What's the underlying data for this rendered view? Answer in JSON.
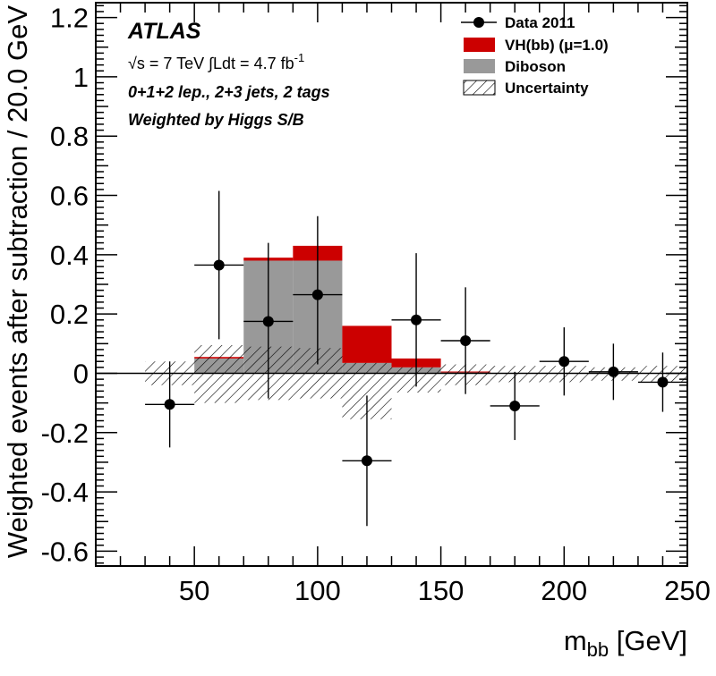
{
  "chart_data": {
    "type": "bar",
    "title": "",
    "experiment_label": "ATLAS",
    "energy_label": "√s = 7 TeV  ∫Ldt = 4.7 fb",
    "lumi_superscript": "-1",
    "selection_label": "0+1+2 lep., 2+3 jets, 2 tags",
    "weighting_label": "Weighted by Higgs S/B",
    "xlabel": "m",
    "xlabel_subscript": "bb",
    "xlabel_unit": " [GeV]",
    "ylabel": "Weighted events after subtraction / 20.0 GeV",
    "xlim": [
      10,
      250
    ],
    "ylim": [
      -0.65,
      1.25
    ],
    "x_ticks": [
      50,
      100,
      150,
      200,
      250
    ],
    "y_ticks": [
      -0.6,
      -0.4,
      -0.2,
      0,
      0.2,
      0.4,
      0.6,
      0.8,
      1,
      1.2
    ],
    "y_tick_labels": [
      "-0.6",
      "-0.4",
      "-0.2",
      "0",
      "0.2",
      "0.4",
      "0.6",
      "0.8",
      "1",
      "1.2"
    ],
    "bin_edges": [
      30,
      50,
      70,
      90,
      110,
      130,
      150,
      170,
      190,
      210,
      230,
      250
    ],
    "series": [
      {
        "name": "Diboson",
        "color": "#999999",
        "values": [
          0,
          0.05,
          0.38,
          0.38,
          0.035,
          0.02,
          0.003,
          0,
          0,
          0,
          0
        ]
      },
      {
        "name": "VH(bb) (μ=1.0)",
        "color": "#cc0000",
        "values": [
          0,
          0.005,
          0.01,
          0.05,
          0.125,
          0.03,
          0.003,
          0,
          0,
          0,
          0
        ]
      }
    ],
    "uncertainty": {
      "name": "Uncertainty",
      "bands": [
        {
          "x0": 30,
          "x1": 50,
          "lo": -0.04,
          "hi": 0.04
        },
        {
          "x0": 50,
          "x1": 70,
          "lo": -0.1,
          "hi": 0.095
        },
        {
          "x0": 70,
          "x1": 90,
          "lo": -0.09,
          "hi": 0.09
        },
        {
          "x0": 90,
          "x1": 110,
          "lo": -0.085,
          "hi": 0.085
        },
        {
          "x0": 110,
          "x1": 130,
          "lo": -0.155,
          "hi": 0.035
        },
        {
          "x0": 130,
          "x1": 150,
          "lo": -0.065,
          "hi": 0.02
        },
        {
          "x0": 150,
          "x1": 170,
          "lo": -0.04,
          "hi": 0.03
        },
        {
          "x0": 170,
          "x1": 190,
          "lo": -0.03,
          "hi": 0.025
        },
        {
          "x0": 190,
          "x1": 210,
          "lo": -0.03,
          "hi": 0.025
        },
        {
          "x0": 210,
          "x1": 230,
          "lo": -0.025,
          "hi": 0.02
        },
        {
          "x0": 230,
          "x1": 250,
          "lo": -0.03,
          "hi": 0.025
        }
      ]
    },
    "data": {
      "name": "Data 2011",
      "points": [
        {
          "x": 40,
          "y": -0.105,
          "err_lo": 0.145,
          "err_hi": 0.145
        },
        {
          "x": 60,
          "y": 0.365,
          "err_lo": 0.25,
          "err_hi": 0.25
        },
        {
          "x": 80,
          "y": 0.175,
          "err_lo": 0.26,
          "err_hi": 0.265
        },
        {
          "x": 100,
          "y": 0.265,
          "err_lo": 0.235,
          "err_hi": 0.265
        },
        {
          "x": 120,
          "y": -0.295,
          "err_lo": 0.22,
          "err_hi": 0.22
        },
        {
          "x": 140,
          "y": 0.18,
          "err_lo": 0.225,
          "err_hi": 0.225
        },
        {
          "x": 160,
          "y": 0.11,
          "err_lo": 0.18,
          "err_hi": 0.18
        },
        {
          "x": 180,
          "y": -0.11,
          "err_lo": 0.115,
          "err_hi": 0.115
        },
        {
          "x": 200,
          "y": 0.04,
          "err_lo": 0.115,
          "err_hi": 0.115
        },
        {
          "x": 220,
          "y": 0.005,
          "err_lo": 0.095,
          "err_hi": 0.095
        },
        {
          "x": 240,
          "y": -0.03,
          "err_lo": 0.1,
          "err_hi": 0.1
        }
      ]
    },
    "legend": {
      "placement": "top-right",
      "entries": [
        "Data 2011",
        "VH(bb) (μ=1.0)",
        "Diboson",
        "Uncertainty"
      ]
    }
  }
}
